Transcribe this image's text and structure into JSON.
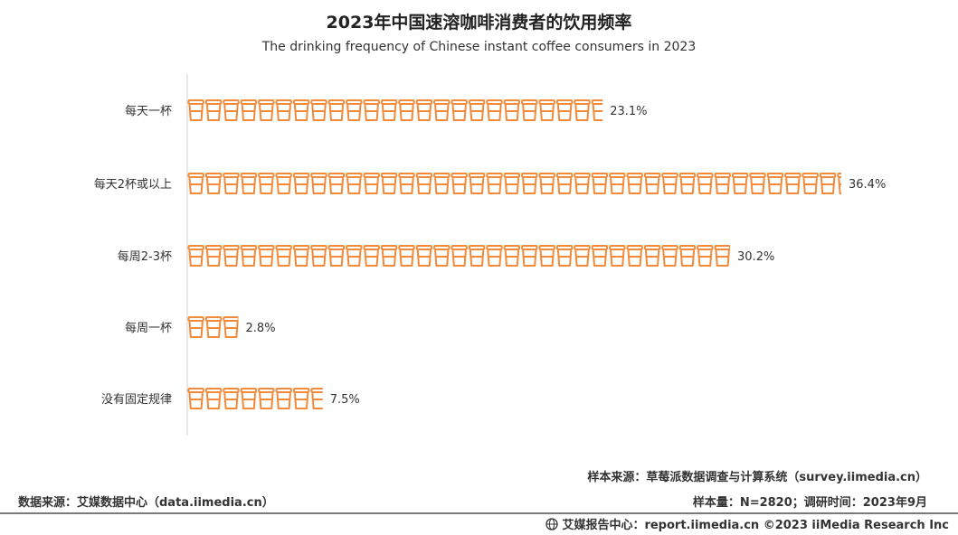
{
  "chart_data": {
    "type": "bar",
    "orientation": "horizontal",
    "title": "2023年中国速溶咖啡消费者的饮用频率",
    "subtitle": "The drinking frequency of Chinese instant coffee consumers in 2023",
    "categories": [
      "每天一杯",
      "每天2杯或以上",
      "每周2-3杯",
      "每周一杯",
      "没有固定规律"
    ],
    "values": [
      23.1,
      36.4,
      30.2,
      2.8,
      7.5
    ],
    "value_labels": [
      "23.1%",
      "36.4%",
      "30.2%",
      "2.8%",
      "7.5%"
    ],
    "unit": "%",
    "xlim": [
      0,
      36.4
    ],
    "grid": false,
    "legend": "none",
    "mark": "coffee-cup-icons",
    "color": "#F28A3B"
  },
  "footer": {
    "sample_source": "样本来源：草莓派数据调查与计算系统（survey.iimedia.cn）",
    "sample_size": "样本量：N=2820；调研时间：2023年9月",
    "data_source": "数据来源：艾媒数据中心（data.iimedia.cn）",
    "credit": "艾媒报告中心：report.iimedia.cn  ©2023  iiMedia Research  Inc"
  }
}
